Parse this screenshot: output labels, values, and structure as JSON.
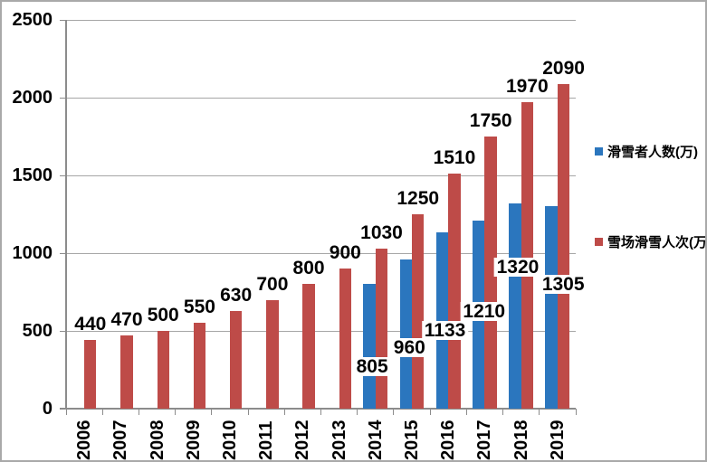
{
  "chart_data": {
    "type": "bar",
    "title": "",
    "categories": [
      "2006",
      "2007",
      "2008",
      "2009",
      "2010",
      "2011",
      "2012",
      "2013",
      "2014",
      "2015",
      "2016",
      "2017",
      "2018",
      "2019"
    ],
    "series": [
      {
        "name": "滑雪者人数(万)",
        "color": "#2b76be",
        "values": [
          null,
          null,
          null,
          null,
          null,
          null,
          null,
          null,
          805,
          960,
          1133,
          1210,
          1320,
          1305
        ]
      },
      {
        "name": "雪场滑雪人次(万)",
        "color": "#be4b48",
        "values": [
          440,
          470,
          500,
          550,
          630,
          700,
          800,
          900,
          1030,
          1250,
          1510,
          1750,
          1970,
          2090
        ]
      }
    ],
    "ylim": [
      0,
      2500
    ],
    "ytick_interval": 500,
    "yticks": [
      "0",
      "500",
      "1000",
      "1500",
      "2000",
      "2500"
    ],
    "grid": true,
    "gridline_color": "#a6a6a6",
    "axis_color": "#8c8c8c",
    "legend_position": "right",
    "data_labels": true
  }
}
